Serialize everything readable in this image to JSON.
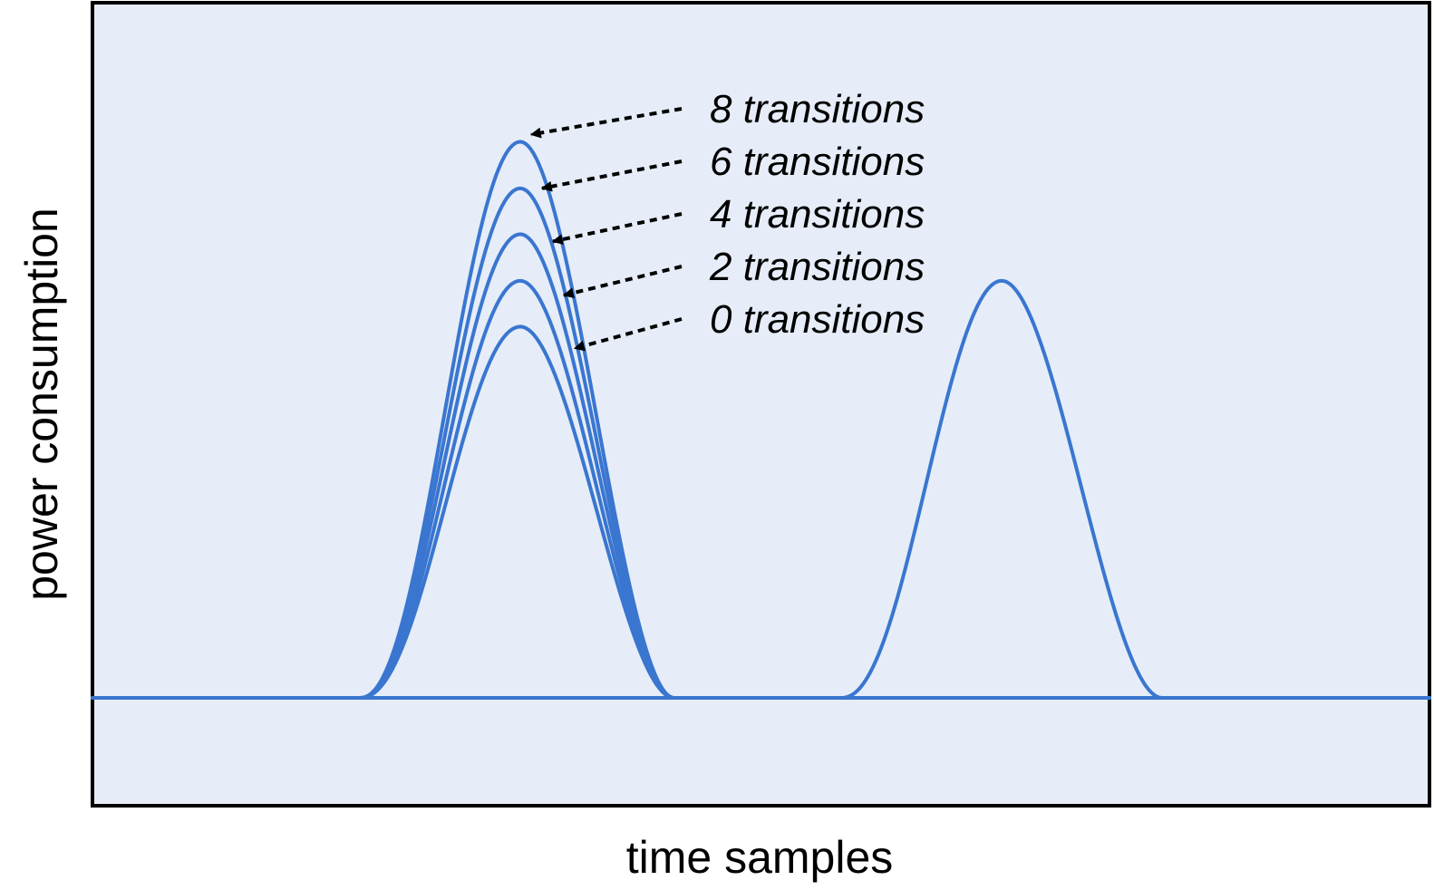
{
  "chart_data": {
    "type": "line",
    "title": "",
    "xlabel": "time samples",
    "ylabel": "power consumption",
    "grid": false,
    "xticks": false,
    "yticks": false,
    "baseline": 0,
    "series_color": "#3a76d0",
    "frame_color": "#000000",
    "background_color": "#e6edf8",
    "pulse1": {
      "start": 0.2,
      "peak_x": 0.32,
      "end": 0.435
    },
    "pulse2": {
      "start": 0.56,
      "peak_x": 0.68,
      "end": 0.8,
      "peak": 0.6
    },
    "series": [
      {
        "name": "8 transitions",
        "transitions": 8,
        "peak": 0.8
      },
      {
        "name": "6 transitions",
        "transitions": 6,
        "peak": 0.733
      },
      {
        "name": "4 transitions",
        "transitions": 4,
        "peak": 0.667
      },
      {
        "name": "2 transitions",
        "transitions": 2,
        "peak": 0.6
      },
      {
        "name": "0 transitions",
        "transitions": 0,
        "peak": 0.534
      }
    ]
  }
}
